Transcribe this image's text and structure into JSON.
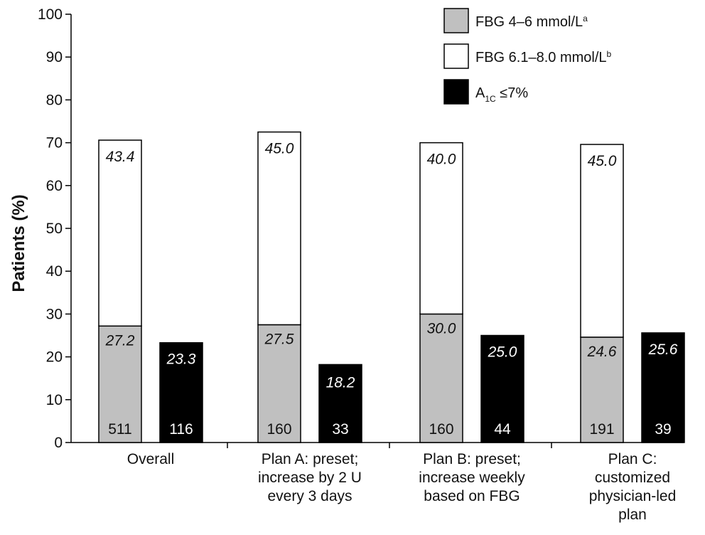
{
  "chart_data": {
    "type": "bar",
    "ylabel": "Patients (%)",
    "ylim": [
      0,
      100
    ],
    "yticks": [
      0,
      10,
      20,
      30,
      40,
      50,
      60,
      70,
      80,
      90,
      100
    ],
    "grid": false,
    "legend_position": "top-right",
    "legend": [
      {
        "key": "fbg46",
        "label": "FBG 4–6 mmol/L",
        "sup": "a",
        "color": "#c0c0c0"
      },
      {
        "key": "fbg68",
        "label": "FBG 6.1–8.0 mmol/L",
        "sup": "b",
        "color": "#ffffff"
      },
      {
        "key": "a1c",
        "label_main": "A",
        "label_sub": "1C",
        "label_rest": " ≤7%",
        "color": "#000000"
      }
    ],
    "categories": [
      {
        "lines": [
          "Overall"
        ]
      },
      {
        "lines": [
          "Plan A: preset;",
          "increase by 2 U",
          "every 3 days"
        ]
      },
      {
        "lines": [
          "Plan B: preset;",
          "increase weekly",
          "based on FBG"
        ]
      },
      {
        "lines": [
          "Plan C:",
          "customized",
          "physician-led",
          "plan"
        ]
      }
    ],
    "groups": [
      {
        "fbg46": 27.2,
        "fbg68": 43.4,
        "a1c": 23.3,
        "fbg_n": "511",
        "a1c_n": "116"
      },
      {
        "fbg46": 27.5,
        "fbg68": 45.0,
        "a1c": 18.2,
        "fbg_n": "160",
        "a1c_n": "33"
      },
      {
        "fbg46": 30.0,
        "fbg68": 40.0,
        "a1c": 25.0,
        "fbg_n": "160",
        "a1c_n": "44"
      },
      {
        "fbg46": 24.6,
        "fbg68": 45.0,
        "a1c": 25.6,
        "fbg_n": "191",
        "a1c_n": "39"
      }
    ]
  }
}
